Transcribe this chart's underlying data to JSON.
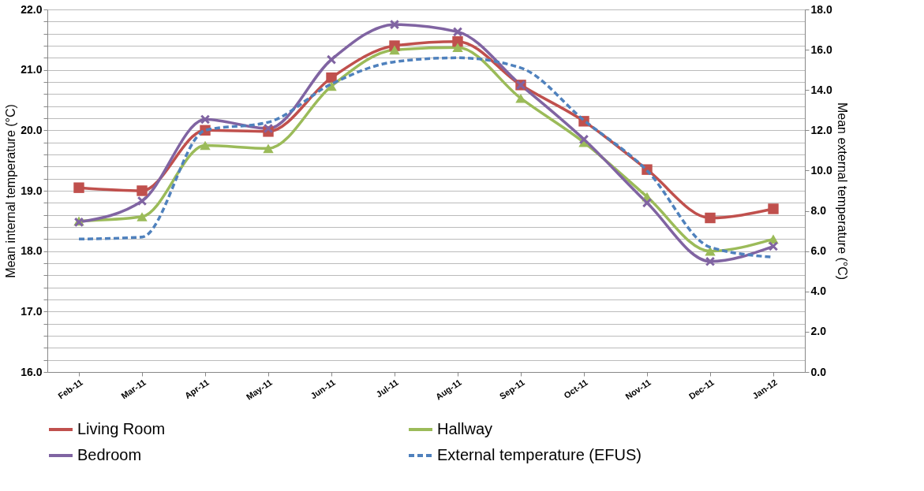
{
  "chart_data": {
    "type": "line",
    "categories": [
      "Feb-11",
      "Mar-11",
      "Apr-11",
      "May-11",
      "Jun-11",
      "Jul-11",
      "Aug-11",
      "Sep-11",
      "Oct-11",
      "Nov-11",
      "Dec-11",
      "Jan-12"
    ],
    "ylabel": "Mean internal temperature (°C)",
    "y2label": "Mean external temperature (°C)",
    "ylim": [
      16,
      22
    ],
    "yticks": [
      {
        "value": 16,
        "label": "16.0"
      },
      {
        "value": 16.2,
        "label": null
      },
      {
        "value": 16.4,
        "label": null
      },
      {
        "value": 16.6,
        "label": null
      },
      {
        "value": 16.8,
        "label": null
      },
      {
        "value": 17,
        "label": "17.0"
      },
      {
        "value": 17.2,
        "label": null
      },
      {
        "value": 17.4,
        "label": null
      },
      {
        "value": 17.6,
        "label": null
      },
      {
        "value": 17.8,
        "label": null
      },
      {
        "value": 18,
        "label": "18.0"
      },
      {
        "value": 18.2,
        "label": null
      },
      {
        "value": 18.4,
        "label": null
      },
      {
        "value": 18.6,
        "label": null
      },
      {
        "value": 18.8,
        "label": null
      },
      {
        "value": 19,
        "label": "19.0"
      },
      {
        "value": 19.2,
        "label": null
      },
      {
        "value": 19.4,
        "label": null
      },
      {
        "value": 19.6,
        "label": null
      },
      {
        "value": 19.8,
        "label": null
      },
      {
        "value": 20,
        "label": "20.0"
      },
      {
        "value": 20.2,
        "label": null
      },
      {
        "value": 20.4,
        "label": null
      },
      {
        "value": 20.6,
        "label": null
      },
      {
        "value": 20.8,
        "label": null
      },
      {
        "value": 21,
        "label": "21.0"
      },
      {
        "value": 21.2,
        "label": null
      },
      {
        "value": 21.4,
        "label": null
      },
      {
        "value": 21.6,
        "label": null
      },
      {
        "value": 21.8,
        "label": null
      },
      {
        "value": 22,
        "label": "22.0"
      }
    ],
    "y2lim": [
      0,
      18
    ],
    "y2ticks": [
      {
        "value": 0,
        "label": "0.0"
      },
      {
        "value": 2,
        "label": "2.0"
      },
      {
        "value": 4,
        "label": "4.0"
      },
      {
        "value": 6,
        "label": "6.0"
      },
      {
        "value": 8,
        "label": "8.0"
      },
      {
        "value": 10,
        "label": "10.0"
      },
      {
        "value": 12,
        "label": "12.0"
      },
      {
        "value": 14,
        "label": "14.0"
      },
      {
        "value": 16,
        "label": "16.0"
      },
      {
        "value": 18,
        "label": "18.0"
      }
    ],
    "grid": "y",
    "legend": "bottom",
    "series": [
      {
        "name": "Living Room",
        "color": "#c0504d",
        "marker": "square",
        "line_style": "solid",
        "values": [
          19.05,
          19.0,
          20.0,
          19.98,
          20.87,
          21.4,
          21.47,
          20.75,
          20.15,
          19.35,
          18.55,
          18.7
        ]
      },
      {
        "name": "Hallway",
        "color": "#9bbb59",
        "marker": "triangle",
        "line_style": "solid",
        "values": [
          18.5,
          18.57,
          19.75,
          19.7,
          20.73,
          21.33,
          21.37,
          20.53,
          19.8,
          18.9,
          18.0,
          18.2
        ]
      },
      {
        "name": "Bedroom",
        "color": "#8064a2",
        "marker": "cross",
        "line_style": "solid",
        "values": [
          18.48,
          18.83,
          20.18,
          20.03,
          21.17,
          21.75,
          21.63,
          20.75,
          19.85,
          18.8,
          17.83,
          18.08
        ]
      },
      {
        "name": "External temperature (EFUS)",
        "color": "#4f81bd",
        "marker": "none",
        "line_style": "dashed",
        "axis": "y2",
        "values": [
          6.6,
          6.7,
          12.0,
          12.4,
          14.3,
          15.4,
          15.6,
          15.1,
          12.5,
          10.0,
          6.2,
          5.7
        ]
      }
    ]
  }
}
